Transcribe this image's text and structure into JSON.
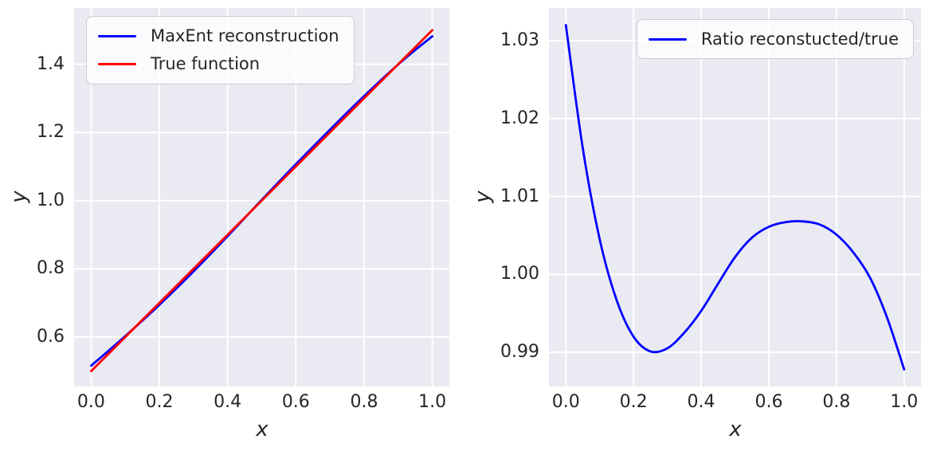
{
  "figure": {
    "background": "#ffffff",
    "axes_background": "#eaeaf2",
    "grid_color": "#ffffff",
    "text_color": "#262626",
    "legend_background": "rgba(255,255,255,0.8)",
    "legend_border": "#cccccc",
    "line_blue": "#0000ff",
    "line_red": "#ff0000"
  },
  "chart_data": [
    {
      "type": "line",
      "title": "",
      "xlabel": "x",
      "ylabel": "y",
      "grid": true,
      "legend_position": "upper-left",
      "xlim": [
        -0.05,
        1.05
      ],
      "ylim": [
        0.455,
        1.565
      ],
      "x_tick_values": [
        0.0,
        0.2,
        0.4,
        0.6,
        0.8,
        1.0
      ],
      "x_tick_labels": [
        "0.0",
        "0.2",
        "0.4",
        "0.6",
        "0.8",
        "1.0"
      ],
      "y_tick_values": [
        0.6,
        0.8,
        1.0,
        1.2,
        1.4
      ],
      "y_tick_labels": [
        "0.6",
        "0.8",
        "1.0",
        "1.2",
        "1.4"
      ],
      "x": [
        0,
        0.05,
        0.1,
        0.15,
        0.2,
        0.25,
        0.3,
        0.35,
        0.4,
        0.45,
        0.5,
        0.55,
        0.6,
        0.65,
        0.7,
        0.75,
        0.8,
        0.85,
        0.9,
        0.95,
        1.0
      ],
      "series": [
        {
          "name": "MaxEnt reconstruction",
          "color": "#0000ff",
          "values": [
            0.516,
            0.5589,
            0.6027,
            0.6479,
            0.6944,
            0.7426,
            0.7924,
            0.8436,
            0.8958,
            0.9489,
            1.0022,
            1.0549,
            1.1067,
            1.1577,
            1.2082,
            1.258,
            1.3066,
            1.3538,
            1.3993,
            1.4419,
            1.4817
          ]
        },
        {
          "name": "True function",
          "color": "#ff0000",
          "values": [
            0.5,
            0.55,
            0.6,
            0.65,
            0.7,
            0.75,
            0.8,
            0.85,
            0.9,
            0.95,
            1.0,
            1.05,
            1.1,
            1.15,
            1.2,
            1.25,
            1.3,
            1.35,
            1.4,
            1.45,
            1.5
          ]
        }
      ]
    },
    {
      "type": "line",
      "title": "",
      "xlabel": "x",
      "ylabel": "y",
      "grid": true,
      "legend_position": "upper-right",
      "xlim": [
        -0.05,
        1.05
      ],
      "ylim": [
        0.9856,
        1.0342
      ],
      "x_tick_values": [
        0.0,
        0.2,
        0.4,
        0.6,
        0.8,
        1.0
      ],
      "x_tick_labels": [
        "0.0",
        "0.2",
        "0.4",
        "0.6",
        "0.8",
        "1.0"
      ],
      "y_tick_values": [
        0.99,
        1.0,
        1.01,
        1.02,
        1.03
      ],
      "y_tick_labels": [
        "0.99",
        "1.00",
        "1.01",
        "1.02",
        "1.03"
      ],
      "x": [
        0,
        0.05,
        0.1,
        0.15,
        0.2,
        0.25,
        0.3,
        0.35,
        0.4,
        0.45,
        0.5,
        0.55,
        0.6,
        0.65,
        0.7,
        0.75,
        0.8,
        0.85,
        0.9,
        0.95,
        1.0
      ],
      "series": [
        {
          "name": "Ratio reconstucted/true",
          "color": "#0000ff",
          "values": [
            1.032,
            1.0162,
            1.0045,
            0.9967,
            0.992,
            0.9901,
            0.9905,
            0.9925,
            0.9953,
            0.9988,
            1.0022,
            1.0047,
            1.0061,
            1.0067,
            1.0068,
            1.0064,
            1.0051,
            1.0028,
            0.9995,
            0.9944,
            0.9878
          ]
        }
      ]
    }
  ]
}
